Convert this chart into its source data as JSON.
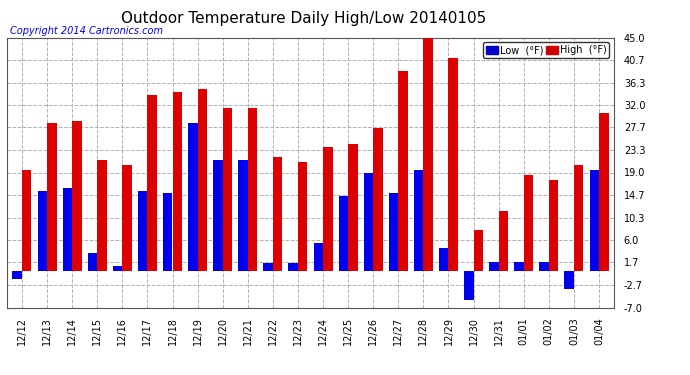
{
  "title": "Outdoor Temperature Daily High/Low 20140105",
  "copyright": "Copyright 2014 Cartronics.com",
  "legend_labels": [
    "Low  (°F)",
    "High  (°F)"
  ],
  "legend_colors": [
    "#0000cc",
    "#cc0000"
  ],
  "dates": [
    "12/12",
    "12/13",
    "12/14",
    "12/15",
    "12/16",
    "12/17",
    "12/18",
    "12/19",
    "12/20",
    "12/21",
    "12/22",
    "12/23",
    "12/24",
    "12/25",
    "12/26",
    "12/27",
    "12/28",
    "12/29",
    "12/30",
    "12/31",
    "01/01",
    "01/02",
    "01/03",
    "01/04"
  ],
  "lows": [
    -1.5,
    15.5,
    16.0,
    3.5,
    1.0,
    15.5,
    15.0,
    28.5,
    21.5,
    21.5,
    1.5,
    1.5,
    5.5,
    14.5,
    19.0,
    15.0,
    19.5,
    4.5,
    -5.5,
    1.7,
    1.7,
    1.7,
    -3.5,
    19.5
  ],
  "highs": [
    19.5,
    28.5,
    29.0,
    21.5,
    20.5,
    34.0,
    34.5,
    35.0,
    31.5,
    31.5,
    22.0,
    21.0,
    24.0,
    24.5,
    27.5,
    38.5,
    45.5,
    41.0,
    8.0,
    11.5,
    18.5,
    17.5,
    20.5,
    30.5
  ],
  "ylim": [
    -7.0,
    45.0
  ],
  "yticks": [
    -7.0,
    -2.7,
    1.7,
    6.0,
    10.3,
    14.7,
    19.0,
    23.3,
    27.7,
    32.0,
    36.3,
    40.7,
    45.0
  ],
  "bar_width": 0.38,
  "low_color": "#0000ee",
  "high_color": "#dd0000",
  "bg_color": "#ffffff",
  "grid_color": "#b0b0b0",
  "title_fontsize": 11,
  "copyright_fontsize": 7,
  "tick_fontsize": 7
}
